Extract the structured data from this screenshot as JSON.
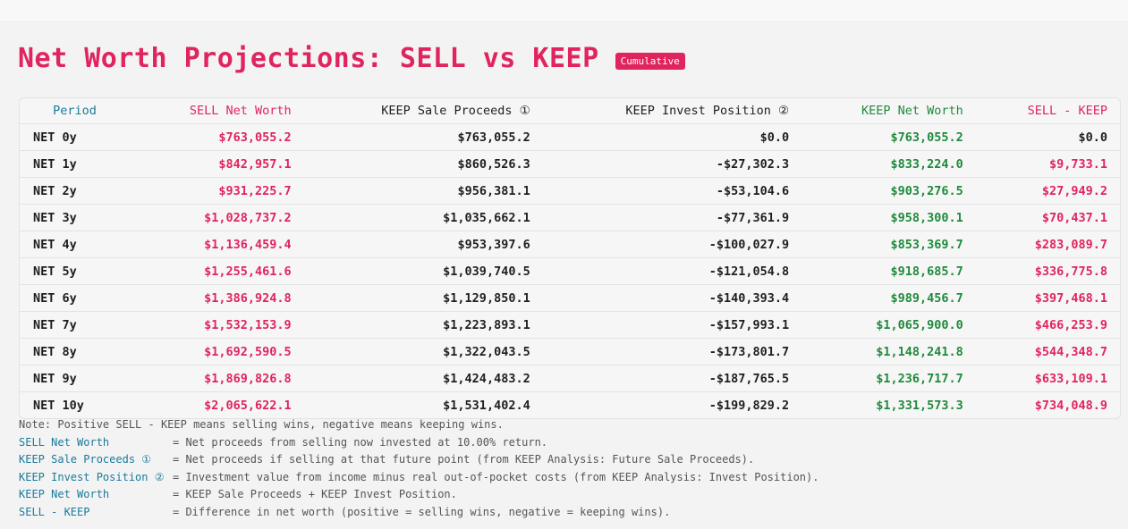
{
  "title": "Net Worth Projections: SELL vs KEEP",
  "badge": "Cumulative",
  "table": {
    "headers": {
      "period": "Period",
      "sell": "SELL Net Worth",
      "keep_sale": "KEEP Sale Proceeds ①",
      "keep_invest": "KEEP Invest Position ②",
      "keep_net": "KEEP Net Worth",
      "diff": "SELL - KEEP"
    },
    "rows": [
      {
        "period": "NET 0y",
        "sell": "$763,055.2",
        "keep_sale": "$763,055.2",
        "keep_invest": "$0.0",
        "keep_net": "$763,055.2",
        "diff": "$0.0"
      },
      {
        "period": "NET 1y",
        "sell": "$842,957.1",
        "keep_sale": "$860,526.3",
        "keep_invest": "-$27,302.3",
        "keep_net": "$833,224.0",
        "diff": "$9,733.1"
      },
      {
        "period": "NET 2y",
        "sell": "$931,225.7",
        "keep_sale": "$956,381.1",
        "keep_invest": "-$53,104.6",
        "keep_net": "$903,276.5",
        "diff": "$27,949.2"
      },
      {
        "period": "NET 3y",
        "sell": "$1,028,737.2",
        "keep_sale": "$1,035,662.1",
        "keep_invest": "-$77,361.9",
        "keep_net": "$958,300.1",
        "diff": "$70,437.1"
      },
      {
        "period": "NET 4y",
        "sell": "$1,136,459.4",
        "keep_sale": "$953,397.6",
        "keep_invest": "-$100,027.9",
        "keep_net": "$853,369.7",
        "diff": "$283,089.7"
      },
      {
        "period": "NET 5y",
        "sell": "$1,255,461.6",
        "keep_sale": "$1,039,740.5",
        "keep_invest": "-$121,054.8",
        "keep_net": "$918,685.7",
        "diff": "$336,775.8"
      },
      {
        "period": "NET 6y",
        "sell": "$1,386,924.8",
        "keep_sale": "$1,129,850.1",
        "keep_invest": "-$140,393.4",
        "keep_net": "$989,456.7",
        "diff": "$397,468.1"
      },
      {
        "period": "NET 7y",
        "sell": "$1,532,153.9",
        "keep_sale": "$1,223,893.1",
        "keep_invest": "-$157,993.1",
        "keep_net": "$1,065,900.0",
        "diff": "$466,253.9"
      },
      {
        "period": "NET 8y",
        "sell": "$1,692,590.5",
        "keep_sale": "$1,322,043.5",
        "keep_invest": "-$173,801.7",
        "keep_net": "$1,148,241.8",
        "diff": "$544,348.7"
      },
      {
        "period": "NET 9y",
        "sell": "$1,869,826.8",
        "keep_sale": "$1,424,483.2",
        "keep_invest": "-$187,765.5",
        "keep_net": "$1,236,717.7",
        "diff": "$633,109.1"
      },
      {
        "period": "NET 10y",
        "sell": "$2,065,622.1",
        "keep_sale": "$1,531,402.4",
        "keep_invest": "-$199,829.2",
        "keep_net": "$1,331,573.3",
        "diff": "$734,048.9"
      }
    ]
  },
  "notes": {
    "main": "Note: Positive SELL - KEEP means selling wins, negative means keeping wins.",
    "items": [
      {
        "term": "SELL Net Worth",
        "def": "= Net proceeds from selling now invested at 10.00% return."
      },
      {
        "term": "KEEP Sale Proceeds ①",
        "def": "= Net proceeds if selling at that future point (from KEEP Analysis: Future Sale Proceeds)."
      },
      {
        "term": "KEEP Invest Position ②",
        "def": "= Investment value from income minus real out-of-pocket costs (from KEEP Analysis: Invest Position)."
      },
      {
        "term": "KEEP Net Worth",
        "def": "= KEEP Sale Proceeds + KEEP Invest Position."
      },
      {
        "term": "SELL - KEEP",
        "def": "= Difference in net worth (positive = selling wins, negative = keeping wins)."
      }
    ]
  },
  "colors": {
    "sell": "#e0245e",
    "keep_net": "#1f8a3c",
    "period_header": "#1a7a9a"
  }
}
